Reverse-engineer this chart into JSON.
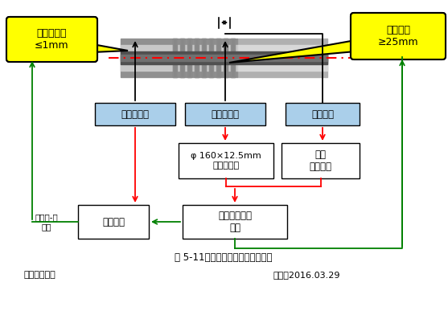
{
  "title": "图 5-11：集热管自动焊对口分析图",
  "subtitle_left": "制图：樊建兵",
  "subtitle_right": "时间：2016.03.29",
  "bubble_left": "对口同心度\n≤1mm",
  "bubble_right": "焊后间隙\n≥25mm",
  "box1_text": "支撑集热管",
  "box2_text": "支撑集热管",
  "box3_text": "固定机头",
  "box4_text": "φ 160×12.5mm\n柔性半圆环",
  "box5_text": "管套\n上下结构",
  "box6_text": "二点支撑",
  "box7_text": "集热管与管套\n同心",
  "label_left": "集热管-管\n同心",
  "bg_color": "#ffffff",
  "box_blue_fill": "#aacfea",
  "box_white_fill": "#ffffff",
  "box_border": "#000000",
  "arrow_black": "#000000",
  "arrow_red": "#ff0000",
  "arrow_green": "#008000",
  "bubble_fill": "#ffff00",
  "dashed_line_color": "#ff0000"
}
